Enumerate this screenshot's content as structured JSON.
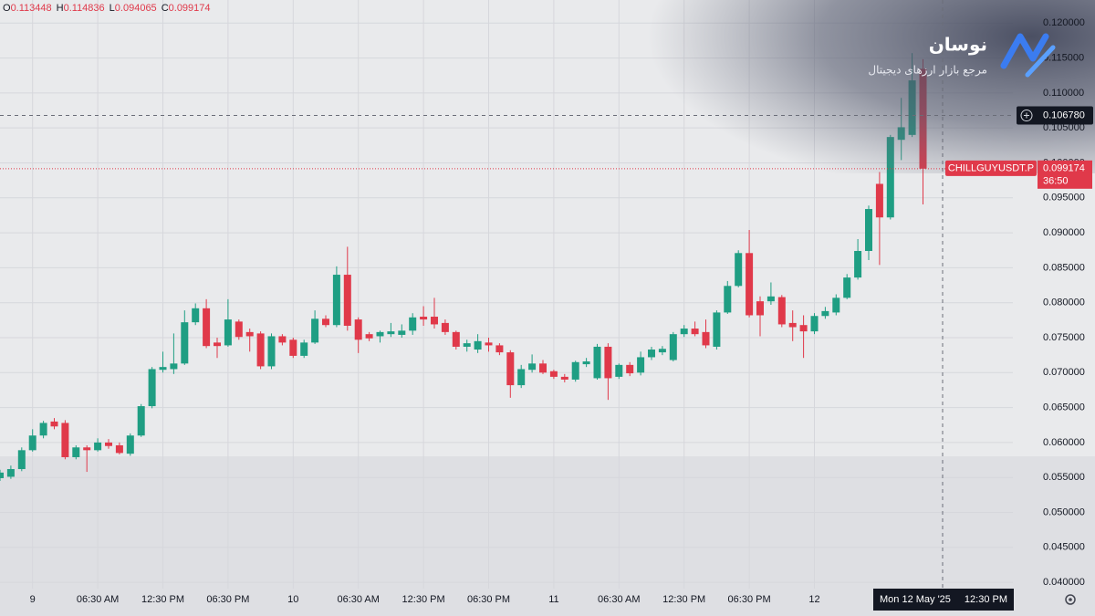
{
  "chart_data": {
    "type": "candlestick",
    "symbol": "CHILLGUYUSDT.P",
    "countdown": "36:50",
    "ohlc_letters": [
      "O",
      "H",
      "L",
      "C"
    ],
    "brand": {
      "name": "نوسان",
      "tagline": "مرجع بازار ارزهای دیجیتال"
    },
    "crosshair": {
      "price": 0.10678,
      "price_label": "0.106780",
      "time_label": "Mon 12 May '25",
      "time_hour": "12:30 PM"
    },
    "categories": [
      null,
      null,
      null,
      "9",
      null,
      null,
      null,
      null,
      null,
      "06:30 AM",
      null,
      null,
      null,
      null,
      null,
      "12:30 PM",
      null,
      null,
      null,
      null,
      null,
      "06:30 PM",
      null,
      null,
      null,
      null,
      null,
      "10",
      null,
      null,
      null,
      null,
      null,
      "06:30 AM",
      null,
      null,
      null,
      null,
      null,
      "12:30 PM",
      null,
      null,
      null,
      null,
      null,
      "06:30 PM",
      null,
      null,
      null,
      null,
      null,
      "11",
      null,
      null,
      null,
      null,
      null,
      "06:30 AM",
      null,
      null,
      null,
      null,
      null,
      "12:30 PM",
      null,
      null,
      null,
      null,
      null,
      "06:30 PM",
      null,
      null,
      null,
      null,
      null,
      "12",
      null,
      null,
      null,
      null,
      null,
      null,
      null,
      null,
      null,
      null
    ],
    "open": [
      0.0549,
      0.0551,
      0.0562,
      0.0589,
      0.061,
      0.063,
      0.0628,
      0.0579,
      0.0593,
      0.0589,
      0.06,
      0.0596,
      0.0584,
      0.061,
      0.0652,
      0.0704,
      0.0705,
      0.0713,
      0.0772,
      0.0792,
      0.0743,
      0.0739,
      0.0773,
      0.0758,
      0.0756,
      0.0709,
      0.0752,
      0.0747,
      0.0724,
      0.0743,
      0.0777,
      0.0768,
      0.084,
      0.0776,
      0.0755,
      0.0752,
      0.0755,
      0.0754,
      0.076,
      0.078,
      0.078,
      0.0771,
      0.0758,
      0.0737,
      0.0733,
      0.0743,
      0.0739,
      0.0729,
      0.0682,
      0.0704,
      0.0713,
      0.0702,
      0.0694,
      0.069,
      0.0712,
      0.0692,
      0.0737,
      0.0694,
      0.0711,
      0.07,
      0.0722,
      0.0729,
      0.0718,
      0.0755,
      0.0763,
      0.0758,
      0.0737,
      0.0786,
      0.0824,
      0.0871,
      0.0802,
      0.0802,
      0.0808,
      0.0771,
      0.0768,
      0.0759,
      0.0781,
      0.0786,
      0.0807,
      0.0836,
      0.0874,
      0.097,
      0.0922,
      0.1033,
      0.104,
      0.113448
    ],
    "high": [
      0.0561,
      0.0567,
      0.0593,
      0.0619,
      0.0631,
      0.0635,
      0.0632,
      0.0596,
      0.0596,
      0.0606,
      0.0605,
      0.06,
      0.0613,
      0.0655,
      0.0708,
      0.073,
      0.0756,
      0.0789,
      0.0799,
      0.0805,
      0.075,
      0.0805,
      0.0776,
      0.0763,
      0.0759,
      0.0756,
      0.0755,
      0.075,
      0.0747,
      0.0789,
      0.0782,
      0.0852,
      0.088,
      0.0779,
      0.0758,
      0.076,
      0.0771,
      0.0769,
      0.0785,
      0.0795,
      0.0807,
      0.0776,
      0.076,
      0.0747,
      0.0755,
      0.075,
      0.0742,
      0.0732,
      0.0711,
      0.0726,
      0.0718,
      0.0704,
      0.0698,
      0.0717,
      0.0721,
      0.0741,
      0.0742,
      0.0713,
      0.0715,
      0.073,
      0.0737,
      0.0738,
      0.0758,
      0.0768,
      0.0773,
      0.0776,
      0.0789,
      0.0831,
      0.0875,
      0.0904,
      0.0809,
      0.0829,
      0.0811,
      0.0789,
      0.0782,
      0.0785,
      0.0794,
      0.0812,
      0.0841,
      0.0891,
      0.0939,
      0.0987,
      0.104,
      0.1093,
      0.1157,
      0.114836
    ],
    "low": [
      0.0545,
      0.0548,
      0.0559,
      0.0587,
      0.0606,
      0.0619,
      0.0576,
      0.0576,
      0.0558,
      0.0587,
      0.0591,
      0.0583,
      0.0581,
      0.0608,
      0.0649,
      0.07,
      0.0698,
      0.0711,
      0.0768,
      0.0735,
      0.0721,
      0.0737,
      0.0747,
      0.073,
      0.0705,
      0.0705,
      0.0739,
      0.0721,
      0.0721,
      0.0741,
      0.0765,
      0.0765,
      0.076,
      0.0728,
      0.0745,
      0.0743,
      0.0751,
      0.075,
      0.0754,
      0.0767,
      0.0763,
      0.0754,
      0.0733,
      0.073,
      0.0728,
      0.073,
      0.0725,
      0.0664,
      0.0678,
      0.07,
      0.0698,
      0.0691,
      0.0686,
      0.0687,
      0.0708,
      0.069,
      0.0661,
      0.0691,
      0.0695,
      0.0696,
      0.0718,
      0.0725,
      0.0716,
      0.0751,
      0.0752,
      0.0735,
      0.0733,
      0.0784,
      0.0822,
      0.0779,
      0.0752,
      0.0797,
      0.0765,
      0.0745,
      0.0721,
      0.0755,
      0.0777,
      0.0782,
      0.0805,
      0.0833,
      0.0861,
      0.0854,
      0.0919,
      0.1004,
      0.1037,
      0.094065
    ],
    "close": [
      0.0557,
      0.0562,
      0.0589,
      0.061,
      0.0628,
      0.0623,
      0.0579,
      0.0593,
      0.0589,
      0.06,
      0.0595,
      0.0585,
      0.061,
      0.0652,
      0.0705,
      0.0708,
      0.0713,
      0.0772,
      0.0792,
      0.0738,
      0.0738,
      0.0776,
      0.0751,
      0.0752,
      0.0709,
      0.0752,
      0.0743,
      0.0724,
      0.0743,
      0.0777,
      0.0768,
      0.084,
      0.0767,
      0.0747,
      0.0749,
      0.0758,
      0.0759,
      0.076,
      0.0779,
      0.0776,
      0.0769,
      0.0758,
      0.0737,
      0.0742,
      0.0745,
      0.0739,
      0.0729,
      0.0682,
      0.0705,
      0.0713,
      0.07,
      0.0694,
      0.069,
      0.0715,
      0.0716,
      0.0737,
      0.0692,
      0.0711,
      0.0699,
      0.0722,
      0.0733,
      0.0734,
      0.0755,
      0.0763,
      0.0755,
      0.0739,
      0.0786,
      0.0824,
      0.0871,
      0.0782,
      0.0782,
      0.0809,
      0.0769,
      0.0765,
      0.0759,
      0.0781,
      0.0788,
      0.0807,
      0.0836,
      0.0874,
      0.0934,
      0.0922,
      0.1037,
      0.1051,
      0.1118,
      0.099174
    ],
    "up_color": "#1f9e83",
    "down_color": "#e0394a",
    "ylim": [
      0.0391,
      0.1233
    ],
    "yticks": [
      {
        "value": 0.12,
        "label": "0.120000"
      },
      {
        "value": 0.115,
        "label": "0.115000"
      },
      {
        "value": 0.11,
        "label": "0.110000"
      },
      {
        "value": 0.105,
        "label": "0.105000"
      },
      {
        "value": 0.1,
        "label": "0.100000"
      },
      {
        "value": 0.095,
        "label": "0.095000"
      },
      {
        "value": 0.09,
        "label": "0.090000"
      },
      {
        "value": 0.085,
        "label": "0.085000"
      },
      {
        "value": 0.08,
        "label": "0.080000"
      },
      {
        "value": 0.075,
        "label": "0.075000"
      },
      {
        "value": 0.07,
        "label": "0.070000"
      },
      {
        "value": 0.065,
        "label": "0.065000"
      },
      {
        "value": 0.06,
        "label": "0.060000"
      },
      {
        "value": 0.055,
        "label": "0.055000"
      },
      {
        "value": 0.05,
        "label": "0.050000"
      },
      {
        "value": 0.045,
        "label": "0.045000"
      },
      {
        "value": 0.04,
        "label": "0.040000"
      }
    ],
    "grid": true
  }
}
